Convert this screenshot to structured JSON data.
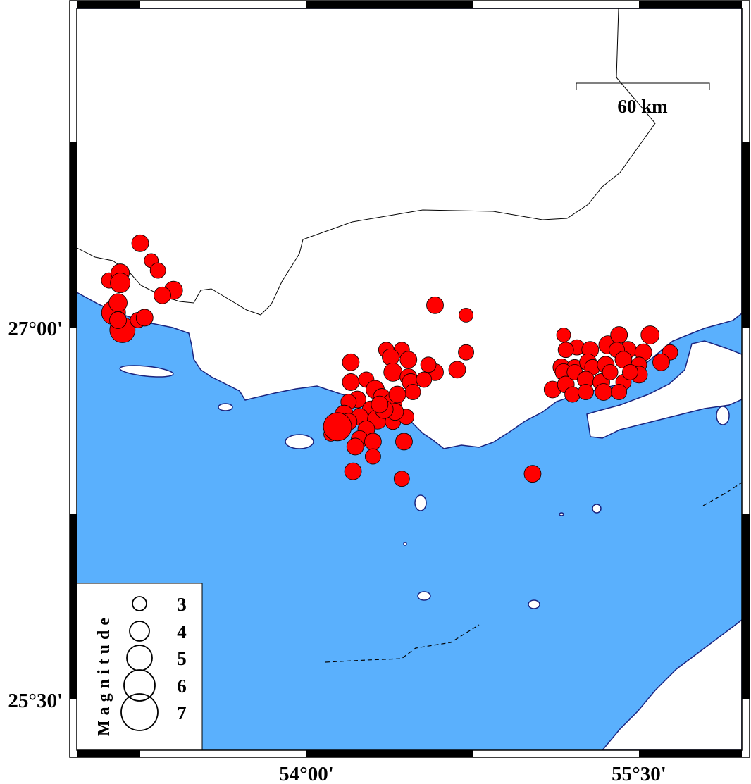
{
  "map": {
    "colors": {
      "sea": "#5AB0FD",
      "land": "#FFFFFF",
      "coastline": "#1A237E",
      "event": "#FF0000",
      "border": "#000000"
    },
    "axes": {
      "lat_labels": [
        "27°00'",
        "25°30'"
      ],
      "lon_labels": [
        "54°00'",
        "55°30'"
      ]
    },
    "scale_bar": {
      "label": "60 km",
      "length_km": 60
    },
    "legend": {
      "title": "Magnitude",
      "entries": [
        {
          "label": "3",
          "mag": 3
        },
        {
          "label": "4",
          "mag": 4
        },
        {
          "label": "5",
          "mag": 5
        },
        {
          "label": "6",
          "mag": 6
        },
        {
          "label": "7",
          "mag": 7
        }
      ]
    },
    "events_lon_lat_mag": [
      [
        53.25,
        27.34,
        3.5
      ],
      [
        53.3,
        27.27,
        3
      ],
      [
        53.33,
        27.23,
        3.25
      ],
      [
        53.11,
        27.19,
        3.25
      ],
      [
        53.16,
        27.22,
        3.75
      ],
      [
        53.16,
        27.18,
        4
      ],
      [
        53.4,
        27.15,
        3.75
      ],
      [
        53.35,
        27.13,
        3.5
      ],
      [
        53.13,
        27.06,
        4.75
      ],
      [
        53.15,
        27.1,
        3.75
      ],
      [
        53.17,
        26.99,
        5
      ],
      [
        53.15,
        27.03,
        3.5
      ],
      [
        53.24,
        27.03,
        3.25
      ],
      [
        53.27,
        27.04,
        3.5
      ],
      [
        54.58,
        27.09,
        3.5
      ],
      [
        54.72,
        27.05,
        3
      ],
      [
        55.02,
        26.41,
        3.5
      ],
      [
        54.36,
        26.91,
        3.25
      ],
      [
        54.43,
        26.91,
        3.25
      ],
      [
        54.38,
        26.88,
        3.5
      ],
      [
        54.46,
        26.87,
        3.5
      ],
      [
        54.2,
        26.86,
        3.5
      ],
      [
        54.72,
        26.9,
        3.25
      ],
      [
        54.68,
        26.83,
        3.5
      ],
      [
        54.39,
        26.82,
        3.75
      ],
      [
        54.58,
        26.82,
        3.5
      ],
      [
        54.55,
        26.85,
        3.25
      ],
      [
        54.46,
        26.8,
        3.5
      ],
      [
        54.47,
        26.78,
        3.5
      ],
      [
        54.2,
        26.78,
        3.5
      ],
      [
        54.27,
        26.79,
        3.25
      ],
      [
        54.53,
        26.79,
        3.25
      ],
      [
        54.48,
        26.74,
        3.25
      ],
      [
        54.31,
        26.75,
        3.75
      ],
      [
        54.34,
        26.72,
        3.5
      ],
      [
        54.23,
        26.71,
        3.5
      ],
      [
        54.39,
        26.7,
        3.75
      ],
      [
        54.19,
        26.7,
        3.25
      ],
      [
        54.29,
        26.67,
        3.5
      ],
      [
        54.17,
        26.65,
        3.75
      ],
      [
        54.24,
        26.64,
        3.5
      ],
      [
        54.32,
        26.63,
        4
      ],
      [
        54.39,
        26.62,
        3.25
      ],
      [
        54.45,
        26.64,
        3.25
      ],
      [
        54.4,
        26.66,
        3.5
      ],
      [
        54.35,
        26.67,
        3.75
      ],
      [
        54.41,
        26.73,
        3.5
      ],
      [
        54.33,
        26.69,
        3.5
      ],
      [
        54.27,
        26.59,
        3.5
      ],
      [
        54.19,
        26.62,
        3.5
      ],
      [
        54.11,
        26.57,
        3
      ],
      [
        54.24,
        26.55,
        3.5
      ],
      [
        54.3,
        26.54,
        3.5
      ],
      [
        54.22,
        26.52,
        3.5
      ],
      [
        54.3,
        26.48,
        3.25
      ],
      [
        54.44,
        26.54,
        3.5
      ],
      [
        54.21,
        26.42,
        3.5
      ],
      [
        54.43,
        26.39,
        3.25
      ],
      [
        54.14,
        26.6,
        5.5
      ],
      [
        55.16,
        26.97,
        3
      ],
      [
        55.55,
        26.97,
        3.75
      ],
      [
        55.64,
        26.9,
        3.25
      ],
      [
        55.6,
        26.86,
        3.5
      ],
      [
        55.22,
        26.92,
        3.25
      ],
      [
        55.17,
        26.91,
        3.25
      ],
      [
        55.28,
        26.91,
        3.5
      ],
      [
        55.36,
        26.93,
        3.75
      ],
      [
        55.41,
        26.97,
        3.5
      ],
      [
        55.45,
        26.91,
        3.5
      ],
      [
        55.52,
        26.9,
        3.5
      ],
      [
        55.4,
        26.91,
        3.25
      ],
      [
        55.43,
        26.87,
        3.5
      ],
      [
        55.15,
        26.84,
        3.5
      ],
      [
        55.21,
        26.84,
        3.25
      ],
      [
        55.27,
        26.86,
        3.5
      ],
      [
        55.29,
        26.84,
        3.25
      ],
      [
        55.35,
        26.85,
        3.5
      ],
      [
        55.5,
        26.85,
        3.25
      ],
      [
        55.16,
        26.82,
        3.5
      ],
      [
        55.11,
        26.75,
        3.5
      ],
      [
        55.17,
        26.77,
        3.5
      ],
      [
        55.21,
        26.82,
        3.25
      ],
      [
        55.26,
        26.79,
        3.5
      ],
      [
        55.33,
        26.78,
        3.5
      ],
      [
        55.37,
        26.82,
        3.25
      ],
      [
        55.43,
        26.78,
        3.25
      ],
      [
        55.5,
        26.81,
        3.5
      ],
      [
        55.2,
        26.73,
        3.25
      ],
      [
        55.26,
        26.74,
        3.25
      ],
      [
        55.34,
        26.74,
        3.5
      ],
      [
        55.41,
        26.74,
        3.25
      ],
      [
        55.46,
        26.82,
        3.25
      ]
    ]
  }
}
